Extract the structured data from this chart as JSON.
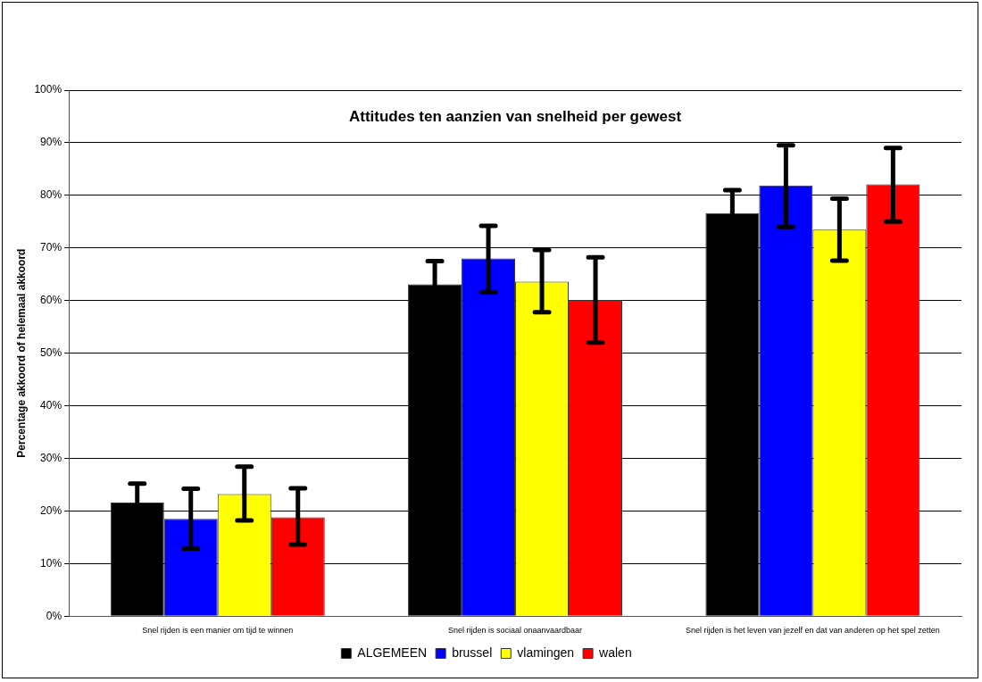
{
  "chart_data": {
    "type": "bar",
    "title": "Attitudes ten aanzien van snelheid per gewest",
    "ylabel": "Percentage akkoord of helemaal akkoord",
    "categories": [
      "Snel rijden is een manier om tijd te winnen",
      "Snel rijden is sociaal onaanvaardbaar",
      "Snel rijden is het leven van jezelf en dat van anderen op het spel zetten"
    ],
    "series": [
      {
        "name": "ALGEMEEN",
        "color": "#000000",
        "values": [
          21.6,
          63.1,
          76.6
        ],
        "errors": [
          3.6,
          4.4,
          4.4
        ]
      },
      {
        "name": "brussel",
        "color": "#0000ff",
        "values": [
          18.5,
          68.0,
          81.9
        ],
        "errors": [
          [
            12.8,
            24.2
          ],
          [
            61.6,
            74.2
          ],
          [
            74.0,
            89.5
          ]
        ]
      },
      {
        "name": "vlamingen",
        "color": "#ffff00",
        "values": [
          23.2,
          63.6,
          73.5
        ],
        "errors": [
          [
            18.2,
            28.4
          ],
          [
            57.8,
            69.6
          ],
          [
            67.6,
            79.4
          ]
        ]
      },
      {
        "name": "walen",
        "color": "#ff0000",
        "values": [
          18.8,
          60.1,
          82.1
        ],
        "errors": [
          [
            13.6,
            24.3
          ],
          [
            52.0,
            68.2
          ],
          [
            75.0,
            89.0
          ]
        ]
      }
    ],
    "ylim": [
      0,
      100
    ],
    "yticks": [
      {
        "value": 0,
        "label": "0%"
      },
      {
        "value": 10,
        "label": "10%"
      },
      {
        "value": 20,
        "label": "20%"
      },
      {
        "value": 30,
        "label": "30%"
      },
      {
        "value": 40,
        "label": "40%"
      },
      {
        "value": 50,
        "label": "50%"
      },
      {
        "value": 60,
        "label": "60%"
      },
      {
        "value": 70,
        "label": "70%"
      },
      {
        "value": 80,
        "label": "80%"
      },
      {
        "value": 90,
        "label": "90%"
      },
      {
        "value": 100,
        "label": "100%"
      }
    ],
    "grid": "y",
    "legend": "bottom"
  }
}
